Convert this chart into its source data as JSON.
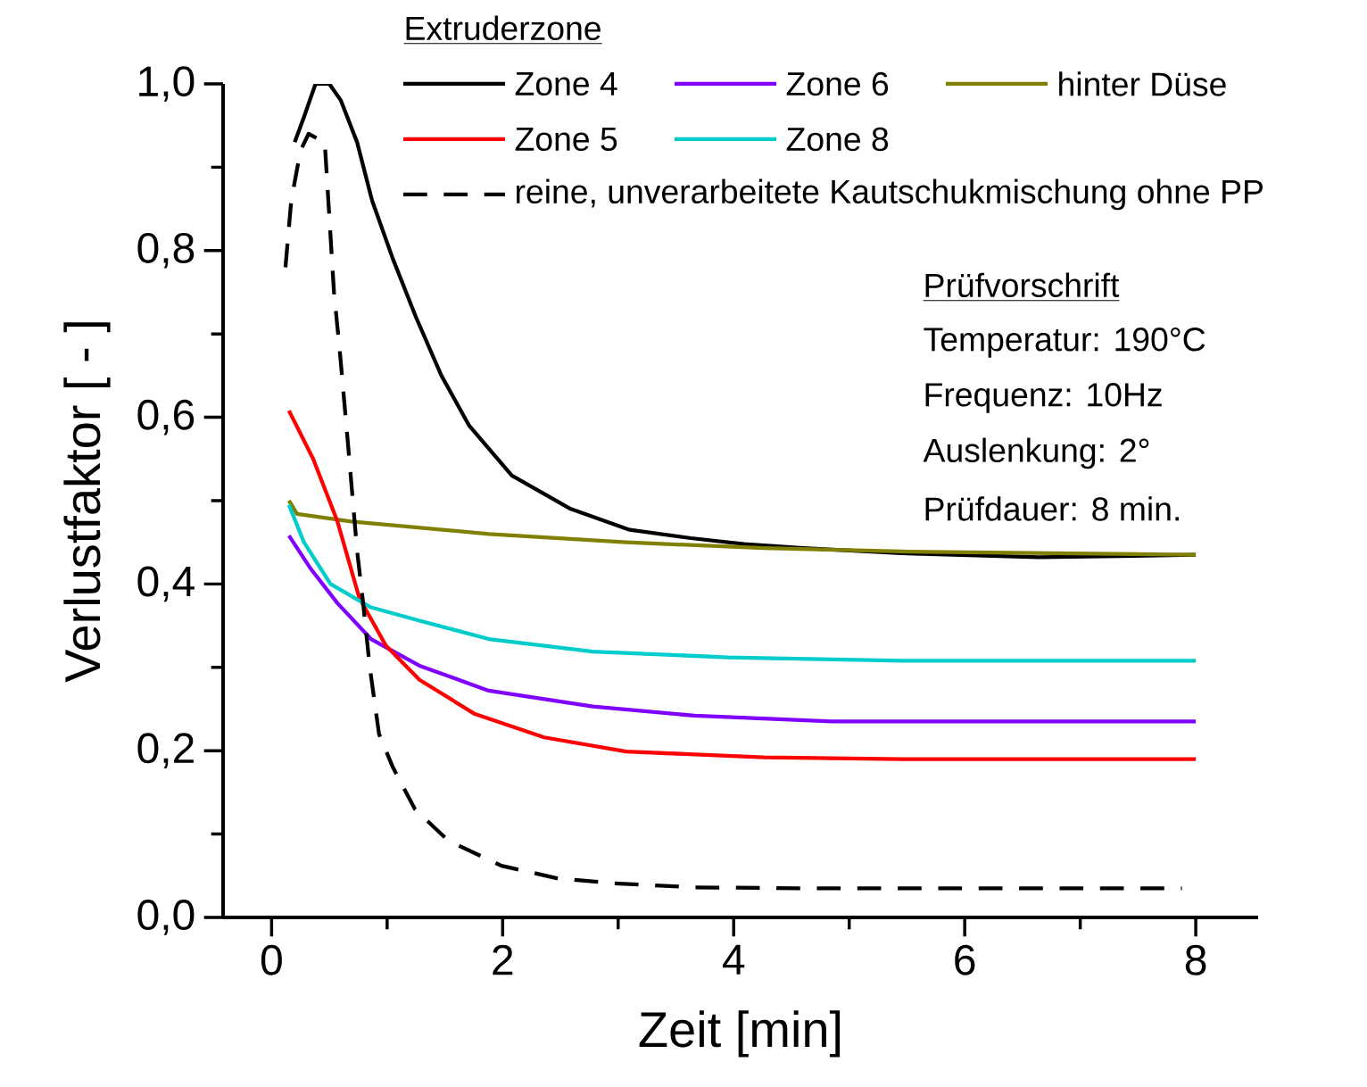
{
  "chart_data": {
    "type": "line",
    "xlabel": "Zeit [min]",
    "ylabel": "Verlustfaktor [ - ]",
    "legend_title": "Extruderzone",
    "xlim": [
      -0.42,
      8.54
    ],
    "ylim": [
      0,
      1.0
    ],
    "xticks": [
      0,
      {
        "value": 1,
        "label": null
      },
      2,
      {
        "value": 3,
        "label": null
      },
      4,
      {
        "value": 5,
        "label": null
      },
      6,
      {
        "value": 7,
        "label": null
      },
      8
    ],
    "yticks": [
      {
        "value": 0,
        "label": "0,0"
      },
      {
        "value": 0.1,
        "label": null
      },
      {
        "value": 0.2,
        "label": "0,2"
      },
      {
        "value": 0.3,
        "label": null
      },
      {
        "value": 0.4,
        "label": "0,4"
      },
      {
        "value": 0.5,
        "label": null
      },
      {
        "value": 0.6,
        "label": "0,6"
      },
      {
        "value": 0.7,
        "label": null
      },
      {
        "value": 0.8,
        "label": "0,8"
      },
      {
        "value": 0.9,
        "label": null
      },
      {
        "value": 1.0,
        "label": "1,0"
      }
    ],
    "legend": "top",
    "marker": "none",
    "series": [
      {
        "name": "Zone 4",
        "color": "#000000",
        "line_style": "solid",
        "x": [
          0.2,
          0.28,
          0.38,
          0.5,
          0.6,
          0.74,
          0.87,
          1.05,
          1.25,
          1.47,
          1.71,
          2.08,
          2.59,
          3.1,
          3.63,
          4.09,
          4.6,
          5.45,
          6.64,
          8.0
        ],
        "values": [
          0.93,
          0.96,
          1.0,
          1.0,
          0.98,
          0.93,
          0.86,
          0.79,
          0.72,
          0.65,
          0.59,
          0.53,
          0.49,
          0.465,
          0.455,
          0.448,
          0.443,
          0.437,
          0.432,
          0.435
        ]
      },
      {
        "name": "Zone 6",
        "color": "#8000ff",
        "line_style": "solid",
        "x": [
          0.15,
          0.34,
          0.57,
          0.86,
          1.28,
          1.88,
          2.78,
          3.66,
          4.85,
          8.0
        ],
        "values": [
          0.458,
          0.418,
          0.377,
          0.334,
          0.302,
          0.272,
          0.253,
          0.242,
          0.235,
          0.235
        ]
      },
      {
        "name": "hinter Düse",
        "color": "#808000",
        "line_style": "solid",
        "x": [
          0.15,
          0.22,
          0.69,
          1.88,
          3.07,
          4.26,
          5.45,
          8.0
        ],
        "values": [
          0.5,
          0.484,
          0.475,
          0.46,
          0.45,
          0.443,
          0.439,
          0.435
        ]
      },
      {
        "name": "Zone 5",
        "color": "#ff0000",
        "line_style": "solid",
        "x": [
          0.15,
          0.36,
          0.57,
          0.76,
          0.99,
          1.28,
          1.76,
          2.36,
          3.07,
          4.26,
          5.45,
          8.0
        ],
        "values": [
          0.608,
          0.55,
          0.475,
          0.383,
          0.326,
          0.285,
          0.244,
          0.216,
          0.199,
          0.192,
          0.19,
          0.19
        ]
      },
      {
        "name": "Zone 8",
        "color": "#00cccc",
        "line_style": "solid",
        "x": [
          0.15,
          0.28,
          0.51,
          0.86,
          1.28,
          1.88,
          2.78,
          3.95,
          5.45,
          8.0
        ],
        "values": [
          0.495,
          0.45,
          0.4,
          0.372,
          0.356,
          0.334,
          0.319,
          0.312,
          0.308,
          0.308
        ]
      },
      {
        "name": "reine, unverarbeitete Kautschukmischung ohne PP",
        "color": "#000000",
        "line_style": "dashed",
        "x": [
          0.12,
          0.17,
          0.25,
          0.32,
          0.46,
          0.54,
          0.59,
          0.66,
          0.74,
          0.79,
          0.85,
          0.93,
          1.05,
          1.24,
          1.53,
          1.99,
          2.47,
          2.95,
          3.66,
          4.56,
          5.45,
          7.88
        ],
        "values": [
          0.78,
          0.86,
          0.92,
          0.94,
          0.93,
          0.75,
          0.68,
          0.57,
          0.44,
          0.38,
          0.3,
          0.22,
          0.18,
          0.13,
          0.092,
          0.062,
          0.047,
          0.041,
          0.036,
          0.035,
          0.035,
          0.035
        ]
      }
    ],
    "annotations": [
      "Prüfvorschrift",
      "Temperatur: 190°C",
      "Frequenz: 10Hz",
      "Auslenkung: 2°",
      "Prüfdauer: 8 min."
    ]
  }
}
